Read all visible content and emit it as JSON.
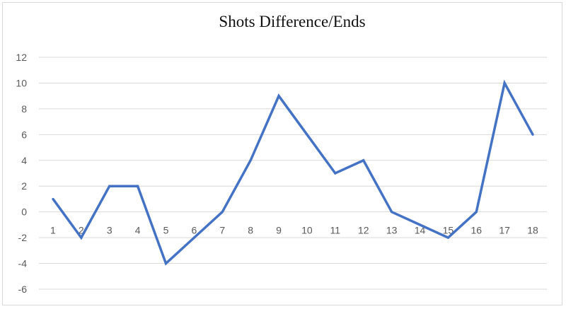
{
  "chart_data": {
    "type": "line",
    "title": "Shots Difference/Ends",
    "xlabel": "",
    "ylabel": "",
    "categories": [
      "1",
      "2",
      "3",
      "4",
      "5",
      "6",
      "7",
      "8",
      "9",
      "10",
      "11",
      "12",
      "13",
      "14",
      "15",
      "16",
      "17",
      "18"
    ],
    "series": [
      {
        "values": [
          1,
          -2,
          2,
          2,
          -4,
          -2,
          0,
          4,
          9,
          6,
          3,
          4,
          0,
          -1,
          -2,
          0,
          10,
          6
        ]
      }
    ],
    "ylim": [
      -6,
      12
    ],
    "yticks": [
      "-6",
      "-4",
      "-2",
      "0",
      "2",
      "4",
      "6",
      "8",
      "10",
      "12"
    ],
    "grid": true,
    "legend": "none",
    "colors": {
      "line": "#4472c4",
      "grid": "#d9d9d9",
      "text": "#595959"
    }
  }
}
